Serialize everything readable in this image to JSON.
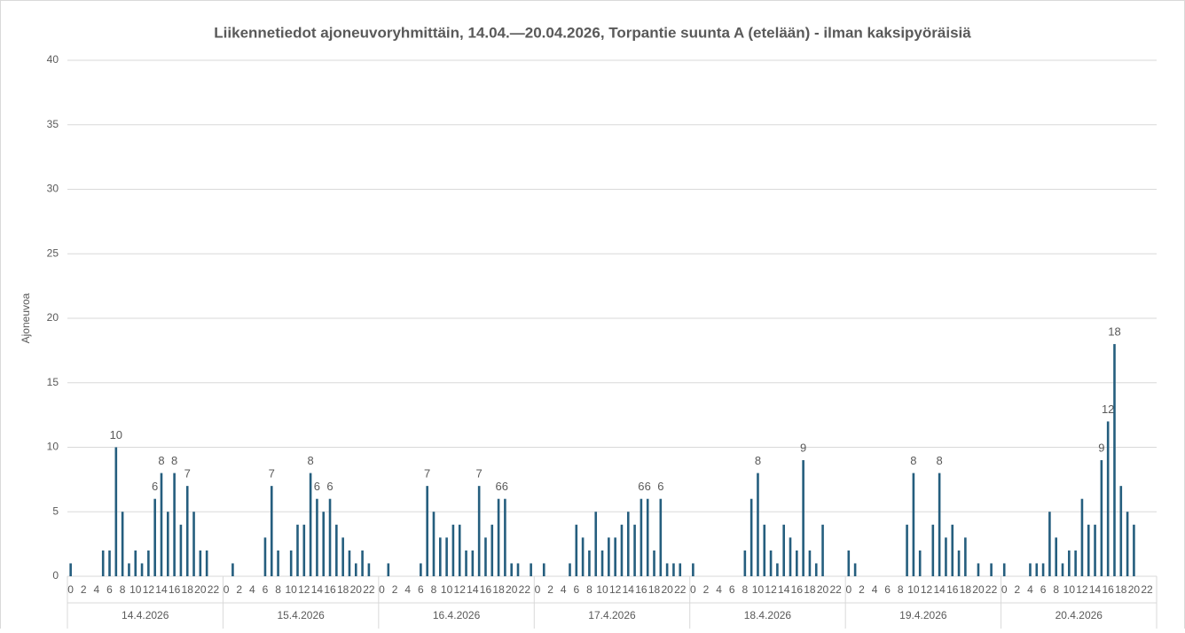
{
  "chart_data": {
    "type": "bar",
    "title": "Liikennetiedot ajoneuvoryhmittäin, 14.04.—20.04.2026, Torpantie suunta A (etelään) - ilman kaksipyöräisiä",
    "y_label": "Ajoneuvoa",
    "groups": [
      "14.4.2026",
      "15.4.2026",
      "16.4.2026",
      "17.4.2026",
      "18.4.2026",
      "19.4.2026",
      "20.4.2026"
    ],
    "categories": [
      0,
      null,
      2,
      null,
      4,
      null,
      6,
      null,
      8,
      null,
      10,
      null,
      12,
      null,
      14,
      null,
      16,
      null,
      18,
      null,
      20,
      null,
      22,
      null,
      0,
      null,
      2,
      null,
      4,
      null,
      6,
      null,
      8,
      null,
      10,
      null,
      12,
      null,
      14,
      null,
      16,
      null,
      18,
      null,
      20,
      null,
      22,
      null,
      0,
      null,
      2,
      null,
      4,
      null,
      6,
      null,
      8,
      null,
      10,
      null,
      12,
      null,
      14,
      null,
      16,
      null,
      18,
      null,
      20,
      null,
      22,
      null,
      0,
      null,
      2,
      null,
      4,
      null,
      6,
      null,
      8,
      null,
      10,
      null,
      12,
      null,
      14,
      null,
      16,
      null,
      18,
      null,
      20,
      null,
      22,
      null,
      0,
      null,
      2,
      null,
      4,
      null,
      6,
      null,
      8,
      null,
      10,
      null,
      12,
      null,
      14,
      null,
      16,
      null,
      18,
      null,
      20,
      null,
      22,
      null,
      0,
      null,
      2,
      null,
      4,
      null,
      6,
      null,
      8,
      null,
      10,
      null,
      12,
      null,
      14,
      null,
      16,
      null,
      18,
      null,
      20,
      null,
      22,
      null,
      0,
      null,
      2,
      null,
      4,
      null,
      6,
      null,
      8,
      null,
      10,
      null,
      12,
      null,
      14,
      null,
      16,
      null,
      18,
      null,
      20,
      null,
      22,
      null
    ],
    "values": [
      1,
      0,
      0,
      0,
      0,
      2,
      2,
      10,
      5,
      1,
      2,
      1,
      2,
      6,
      8,
      5,
      8,
      4,
      7,
      5,
      2,
      2,
      0,
      0,
      0,
      1,
      0,
      0,
      0,
      0,
      3,
      7,
      2,
      0,
      2,
      4,
      4,
      8,
      6,
      5,
      6,
      4,
      3,
      2,
      1,
      2,
      1,
      0,
      0,
      1,
      0,
      0,
      0,
      0,
      1,
      7,
      5,
      3,
      3,
      4,
      4,
      2,
      2,
      7,
      3,
      4,
      6,
      6,
      1,
      1,
      0,
      1,
      0,
      1,
      0,
      0,
      0,
      1,
      4,
      3,
      2,
      5,
      2,
      3,
      3,
      4,
      5,
      4,
      6,
      6,
      2,
      6,
      1,
      1,
      1,
      0,
      1,
      0,
      0,
      0,
      0,
      0,
      0,
      0,
      2,
      6,
      8,
      4,
      2,
      1,
      4,
      3,
      2,
      9,
      2,
      1,
      4,
      0,
      0,
      0,
      2,
      1,
      0,
      0,
      0,
      0,
      0,
      0,
      0,
      4,
      8,
      2,
      0,
      4,
      8,
      3,
      4,
      2,
      3,
      0,
      1,
      0,
      1,
      0,
      1,
      0,
      0,
      0,
      1,
      1,
      1,
      5,
      3,
      1,
      2,
      2,
      6,
      4,
      4,
      9,
      12,
      18,
      7,
      5,
      4,
      0,
      0,
      0
    ],
    "value_labels": [
      null,
      null,
      null,
      null,
      null,
      null,
      null,
      10,
      null,
      null,
      null,
      null,
      null,
      6,
      8,
      null,
      8,
      null,
      7,
      null,
      null,
      null,
      null,
      null,
      null,
      null,
      null,
      null,
      null,
      null,
      null,
      7,
      null,
      null,
      null,
      null,
      null,
      8,
      6,
      null,
      6,
      null,
      null,
      null,
      null,
      null,
      null,
      null,
      null,
      null,
      null,
      null,
      null,
      null,
      null,
      7,
      null,
      null,
      null,
      null,
      null,
      null,
      null,
      7,
      null,
      null,
      6,
      6,
      null,
      null,
      null,
      null,
      null,
      null,
      null,
      null,
      null,
      null,
      null,
      null,
      null,
      null,
      null,
      null,
      null,
      null,
      null,
      null,
      6,
      6,
      null,
      6,
      null,
      null,
      null,
      null,
      null,
      null,
      null,
      null,
      null,
      null,
      null,
      null,
      null,
      null,
      8,
      null,
      null,
      null,
      null,
      null,
      null,
      9,
      null,
      null,
      null,
      null,
      null,
      null,
      null,
      null,
      null,
      null,
      null,
      null,
      null,
      null,
      null,
      null,
      8,
      null,
      null,
      null,
      8,
      null,
      null,
      null,
      null,
      null,
      null,
      null,
      null,
      null,
      null,
      null,
      null,
      null,
      null,
      null,
      null,
      null,
      null,
      null,
      null,
      null,
      null,
      null,
      null,
      9,
      12,
      18,
      null,
      null,
      null,
      null,
      null,
      null
    ],
    "color": "#255e7e",
    "ylim": [
      0,
      40
    ],
    "yticks": [
      0,
      5,
      10,
      15,
      20,
      25,
      30,
      35,
      40
    ],
    "grid": true
  }
}
